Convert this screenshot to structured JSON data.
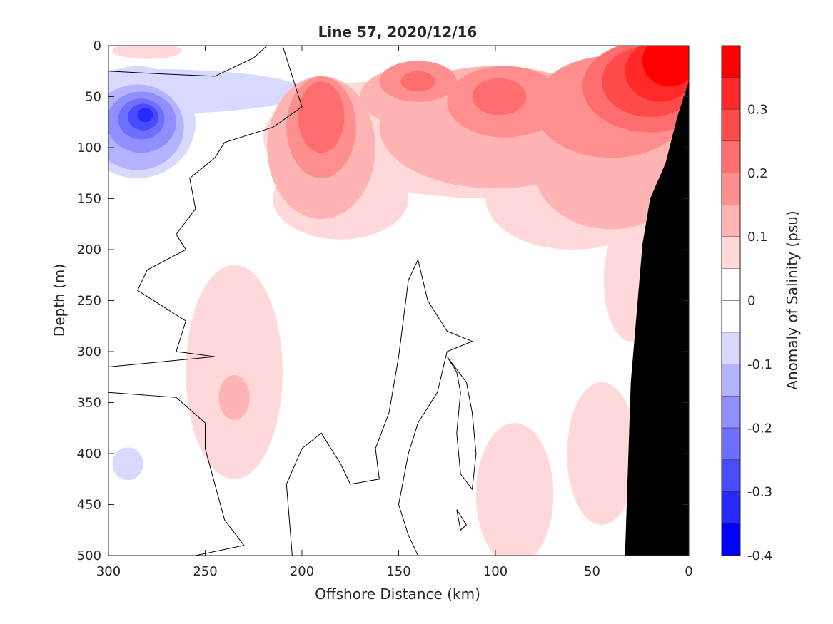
{
  "chart_data": {
    "type": "heatmap",
    "title": "Line 57, 2020/12/16",
    "xlabel": "Offshore Distance (km)",
    "ylabel": "Depth (m)",
    "xlim": [
      300,
      0
    ],
    "ylim": [
      0,
      500
    ],
    "x_reversed": true,
    "y_reversed": true,
    "x_ticks": [
      "300",
      "250",
      "200",
      "150",
      "100",
      "50",
      "0"
    ],
    "y_ticks": [
      "0",
      "50",
      "100",
      "150",
      "200",
      "250",
      "300",
      "350",
      "400",
      "450",
      "500"
    ],
    "colorbar": {
      "label": "Anomaly of Salinity (psu)",
      "range": [
        -0.4,
        0.4
      ],
      "ticks": [
        "0.3",
        "0.2",
        "0.1",
        "0",
        "-0.1",
        "-0.2",
        "-0.3",
        "-0.4"
      ],
      "levels": [
        {
          "from": 0.35,
          "to": 0.4,
          "color": "#ff0000"
        },
        {
          "from": 0.3,
          "to": 0.35,
          "color": "#ff2929"
        },
        {
          "from": 0.25,
          "to": 0.3,
          "color": "#ff4a4a"
        },
        {
          "from": 0.2,
          "to": 0.25,
          "color": "#ff6e6e"
        },
        {
          "from": 0.15,
          "to": 0.2,
          "color": "#ff8f8f"
        },
        {
          "from": 0.1,
          "to": 0.15,
          "color": "#ffb3b3"
        },
        {
          "from": 0.05,
          "to": 0.1,
          "color": "#ffd9d9"
        },
        {
          "from": 0.0,
          "to": 0.05,
          "color": "#ffffff"
        },
        {
          "from": -0.05,
          "to": 0.0,
          "color": "#ffffff"
        },
        {
          "from": -0.1,
          "to": -0.05,
          "color": "#d9d9ff"
        },
        {
          "from": -0.15,
          "to": -0.1,
          "color": "#b3b3ff"
        },
        {
          "from": -0.2,
          "to": -0.15,
          "color": "#8f8fff"
        },
        {
          "from": -0.25,
          "to": -0.2,
          "color": "#6e6eff"
        },
        {
          "from": -0.3,
          "to": -0.25,
          "color": "#4a4aff"
        },
        {
          "from": -0.35,
          "to": -0.3,
          "color": "#2929ff"
        },
        {
          "from": -0.4,
          "to": -0.35,
          "color": "#0000ff"
        }
      ]
    },
    "bathymetry_color": "#000000",
    "blobs": [
      {
        "x": 280,
        "y": 5,
        "rx": 18,
        "ry": 8,
        "v": 0.08
      },
      {
        "x": 285,
        "y": 75,
        "rx": 30,
        "ry": 55,
        "v": -0.08
      },
      {
        "x": 278,
        "y": 45,
        "rx": 80,
        "ry": 22,
        "v": -0.08
      },
      {
        "x": 285,
        "y": 80,
        "rx": 24,
        "ry": 42,
        "v": -0.13
      },
      {
        "x": 283,
        "y": 75,
        "rx": 18,
        "ry": 30,
        "v": -0.18
      },
      {
        "x": 283,
        "y": 72,
        "rx": 12,
        "ry": 20,
        "v": -0.23
      },
      {
        "x": 282,
        "y": 70,
        "rx": 8,
        "ry": 13,
        "v": -0.28
      },
      {
        "x": 281,
        "y": 68,
        "rx": 4,
        "ry": 7,
        "v": -0.33
      },
      {
        "x": 290,
        "y": 410,
        "rx": 8,
        "ry": 16,
        "v": -0.08
      },
      {
        "x": 160,
        "y": 90,
        "rx": 60,
        "ry": 55,
        "v": 0.08
      },
      {
        "x": 100,
        "y": 90,
        "rx": 100,
        "ry": 60,
        "v": 0.08
      },
      {
        "x": 60,
        "y": 150,
        "rx": 45,
        "ry": 50,
        "v": 0.08
      },
      {
        "x": 180,
        "y": 150,
        "rx": 35,
        "ry": 40,
        "v": 0.08
      },
      {
        "x": 30,
        "y": 230,
        "rx": 14,
        "ry": 60,
        "v": 0.08
      },
      {
        "x": 190,
        "y": 100,
        "rx": 28,
        "ry": 70,
        "v": 0.13
      },
      {
        "x": 140,
        "y": 50,
        "rx": 30,
        "ry": 30,
        "v": 0.13
      },
      {
        "x": 100,
        "y": 80,
        "rx": 60,
        "ry": 60,
        "v": 0.13
      },
      {
        "x": 40,
        "y": 120,
        "rx": 40,
        "ry": 60,
        "v": 0.13
      },
      {
        "x": 190,
        "y": 80,
        "rx": 18,
        "ry": 50,
        "v": 0.18
      },
      {
        "x": 140,
        "y": 35,
        "rx": 20,
        "ry": 20,
        "v": 0.18
      },
      {
        "x": 95,
        "y": 55,
        "rx": 30,
        "ry": 35,
        "v": 0.18
      },
      {
        "x": 40,
        "y": 60,
        "rx": 40,
        "ry": 50,
        "v": 0.18
      },
      {
        "x": 190,
        "y": 70,
        "rx": 12,
        "ry": 35,
        "v": 0.23
      },
      {
        "x": 140,
        "y": 35,
        "rx": 9,
        "ry": 10,
        "v": 0.23
      },
      {
        "x": 98,
        "y": 50,
        "rx": 14,
        "ry": 18,
        "v": 0.23
      },
      {
        "x": 20,
        "y": 40,
        "rx": 35,
        "ry": 45,
        "v": 0.23
      },
      {
        "x": 20,
        "y": 35,
        "rx": 25,
        "ry": 35,
        "v": 0.28
      },
      {
        "x": 15,
        "y": 25,
        "rx": 18,
        "ry": 30,
        "v": 0.33
      },
      {
        "x": 10,
        "y": 15,
        "rx": 14,
        "ry": 25,
        "v": 0.38
      },
      {
        "x": 235,
        "y": 320,
        "rx": 25,
        "ry": 105,
        "v": 0.08
      },
      {
        "x": 235,
        "y": 345,
        "rx": 8,
        "ry": 22,
        "v": 0.13
      },
      {
        "x": 90,
        "y": 440,
        "rx": 20,
        "ry": 70,
        "v": 0.08
      },
      {
        "x": 45,
        "y": 400,
        "rx": 18,
        "ry": 70,
        "v": 0.08
      }
    ],
    "bathymetry": [
      [
        0,
        35
      ],
      [
        6,
        70
      ],
      [
        12,
        115
      ],
      [
        20,
        150
      ],
      [
        24,
        195
      ],
      [
        30,
        330
      ],
      [
        33,
        500
      ],
      [
        0,
        500
      ]
    ],
    "zero_contours": [
      [
        [
          300,
          25
        ],
        [
          270,
          28
        ],
        [
          245,
          30
        ],
        [
          225,
          12
        ],
        [
          218,
          0
        ]
      ],
      [
        [
          210,
          0
        ],
        [
          205,
          30
        ],
        [
          200,
          60
        ],
        [
          215,
          80
        ],
        [
          240,
          95
        ],
        [
          245,
          110
        ],
        [
          258,
          130
        ],
        [
          255,
          160
        ],
        [
          265,
          185
        ],
        [
          260,
          200
        ],
        [
          280,
          220
        ],
        [
          285,
          240
        ],
        [
          260,
          270
        ],
        [
          265,
          300
        ],
        [
          245,
          305
        ],
        [
          300,
          315
        ]
      ],
      [
        [
          300,
          340
        ],
        [
          265,
          345
        ],
        [
          250,
          370
        ],
        [
          250,
          395
        ],
        [
          245,
          430
        ],
        [
          240,
          465
        ],
        [
          230,
          490
        ],
        [
          255,
          500
        ]
      ],
      [
        [
          205,
          500
        ],
        [
          208,
          430
        ],
        [
          200,
          395
        ],
        [
          190,
          380
        ],
        [
          180,
          410
        ],
        [
          175,
          430
        ],
        [
          160,
          425
        ],
        [
          162,
          395
        ],
        [
          155,
          360
        ],
        [
          150,
          305
        ],
        [
          145,
          230
        ],
        [
          140,
          210
        ],
        [
          135,
          250
        ],
        [
          125,
          280
        ],
        [
          112,
          290
        ],
        [
          125,
          300
        ],
        [
          130,
          340
        ],
        [
          140,
          370
        ],
        [
          145,
          400
        ],
        [
          150,
          450
        ],
        [
          145,
          480
        ],
        [
          140,
          500
        ]
      ],
      [
        [
          125,
          305
        ],
        [
          120,
          320
        ],
        [
          118,
          340
        ],
        [
          120,
          380
        ],
        [
          118,
          420
        ],
        [
          112,
          435
        ],
        [
          110,
          400
        ],
        [
          112,
          360
        ],
        [
          115,
          330
        ],
        [
          125,
          305
        ]
      ],
      [
        [
          120,
          455
        ],
        [
          118,
          475
        ],
        [
          115,
          470
        ],
        [
          120,
          455
        ]
      ]
    ]
  }
}
